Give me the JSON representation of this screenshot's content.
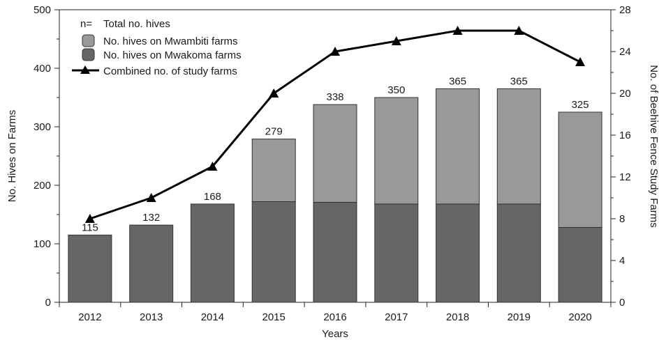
{
  "chart_data": {
    "type": "bar",
    "title": "",
    "xlabel": "Years",
    "ylabel": "No. Hives on Farms",
    "y2label": "No. of Beehive Fence Study Farms",
    "categories": [
      "2012",
      "2013",
      "2014",
      "2015",
      "2016",
      "2017",
      "2018",
      "2019",
      "2020"
    ],
    "ylim": [
      0,
      500
    ],
    "y_ticks": [
      0,
      100,
      200,
      300,
      400,
      500
    ],
    "y2lim": [
      0,
      28
    ],
    "y2_ticks": [
      0,
      4,
      8,
      12,
      16,
      20,
      24,
      28
    ],
    "stacked": true,
    "series": [
      {
        "name": "No. hives on Mwakoma farms",
        "color": "#666666",
        "values": [
          115,
          132,
          168,
          172,
          171,
          168,
          168,
          168,
          128
        ]
      },
      {
        "name": "No. hives on Mwambiti farms",
        "color": "#999999",
        "values": [
          0,
          0,
          0,
          107,
          167,
          182,
          197,
          197,
          197
        ]
      },
      {
        "name": "Combined no. of study farms",
        "type": "line",
        "axis": "right",
        "color": "#000000",
        "marker": "triangle",
        "values": [
          8,
          10,
          13,
          20,
          24,
          25,
          26,
          26,
          23
        ]
      }
    ],
    "totals": [
      "115",
      "132",
      "168",
      "279",
      "338",
      "350",
      "365",
      "365",
      "325"
    ],
    "legend": {
      "position": "top-left",
      "n_label": "n=",
      "total_label": "Total no. hives"
    },
    "grid": false
  }
}
